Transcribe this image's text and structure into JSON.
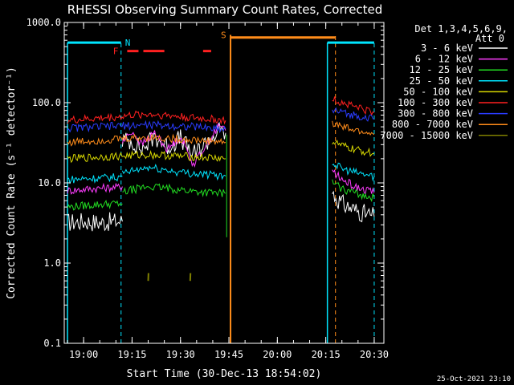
{
  "chart_data": {
    "type": "line",
    "title": "RHESSI Observing Summary Count Rates, Corrected",
    "xlabel": "Start Time (30-Dec-13 18:54:02)",
    "ylabel": "Corrected Count Rate (s⁻¹ detector⁻¹)",
    "y_scale": "log",
    "ylim": [
      0.1,
      1000
    ],
    "xlim_minutes": [
      18.9,
      20.55
    ],
    "x_tick_labels": [
      "19:00",
      "19:15",
      "19:30",
      "19:45",
      "20:00",
      "20:15",
      "20:30"
    ],
    "y_tick_labels": [
      "0.1",
      "1.0",
      "10.0",
      "100.0",
      "1000.0"
    ],
    "legend_header": [
      "Det 1,3,4,5,6,9,",
      "Att 0"
    ],
    "legend_position": "right",
    "timestamp": "25-Oct-2021 23:10",
    "flags": [
      {
        "label": "N",
        "color": "#00e5ff"
      },
      {
        "label": "F",
        "color": "#ff2020"
      },
      {
        "label": "S",
        "color": "#ff8c1a"
      }
    ],
    "series": [
      {
        "name": "3 - 6 keV",
        "color": "#ffffff",
        "segments": [
          {
            "x": [
              "18:55",
              "19:00",
              "19:05",
              "19:10",
              "19:12"
            ],
            "y": [
              3.2,
              3.3,
              3.2,
              3.3,
              3.3
            ]
          },
          {
            "x": [
              "19:12",
              "19:15",
              "19:18",
              "19:22",
              "19:26",
              "19:30",
              "19:34",
              "19:38",
              "19:42",
              "19:44"
            ],
            "y": [
              34,
              33,
              26,
              38,
              28,
              36,
              22,
              32,
              44,
              42
            ]
          },
          {
            "x": [
              "20:17",
              "20:20",
              "20:24",
              "20:28",
              "20:30"
            ],
            "y": [
              7.5,
              5.5,
              4.6,
              4.0,
              3.8
            ]
          }
        ]
      },
      {
        "name": "6 - 12 keV",
        "color": "#ff3cff",
        "segments": [
          {
            "x": [
              "18:55",
              "19:00",
              "19:05",
              "19:10",
              "19:12"
            ],
            "y": [
              8,
              8.3,
              8.6,
              8.8,
              9
            ]
          },
          {
            "x": [
              "19:12",
              "19:15",
              "19:18",
              "19:22",
              "19:26",
              "19:30",
              "19:34",
              "19:38",
              "19:42",
              "19:44"
            ],
            "y": [
              32,
              44,
              30,
              42,
              26,
              38,
              17,
              30,
              52,
              45
            ]
          },
          {
            "x": [
              "20:17",
              "20:20",
              "20:24",
              "20:28",
              "20:30"
            ],
            "y": [
              14,
              11,
              9,
              8,
              7.5
            ]
          }
        ]
      },
      {
        "name": "12 - 25 keV",
        "color": "#22dd22",
        "segments": [
          {
            "x": [
              "18:55",
              "19:00",
              "19:05",
              "19:10",
              "19:12"
            ],
            "y": [
              5,
              5.2,
              5.4,
              5.5,
              5.5
            ]
          },
          {
            "x": [
              "19:12",
              "19:15",
              "19:20",
              "19:25",
              "19:30",
              "19:35",
              "19:40",
              "19:44"
            ],
            "y": [
              7.5,
              8.2,
              9.0,
              8.6,
              8.2,
              7.8,
              7.5,
              7.4
            ]
          },
          {
            "x": [
              "20:17",
              "20:20",
              "20:24",
              "20:28",
              "20:30"
            ],
            "y": [
              10,
              8.5,
              7.5,
              6.8,
              6.5
            ]
          }
        ]
      },
      {
        "name": "25 - 50 keV",
        "color": "#00e5ff",
        "segments": [
          {
            "x": [
              "18:55",
              "19:00",
              "19:05",
              "19:10",
              "19:12"
            ],
            "y": [
              11,
              11.3,
              11.5,
              11.8,
              12
            ]
          },
          {
            "x": [
              "19:12",
              "19:15",
              "19:20",
              "19:25",
              "19:30",
              "19:35",
              "19:40",
              "19:44"
            ],
            "y": [
              13,
              14,
              15.5,
              14.5,
              13.5,
              13,
              12.5,
              12.2
            ]
          },
          {
            "x": [
              "20:17",
              "20:20",
              "20:24",
              "20:28",
              "20:30"
            ],
            "y": [
              18,
              15,
              13.5,
              12.5,
              12
            ]
          }
        ]
      },
      {
        "name": "50 - 100 keV",
        "color": "#d8d800",
        "segments": [
          {
            "x": [
              "18:55",
              "19:00",
              "19:05",
              "19:10",
              "19:15",
              "19:20",
              "19:25",
              "19:30",
              "19:35",
              "19:40",
              "19:44"
            ],
            "y": [
              20,
              20.5,
              21,
              21.5,
              22,
              22.5,
              22,
              21.5,
              21,
              20.5,
              20
            ]
          },
          {
            "x": [
              "20:17",
              "20:20",
              "20:24",
              "20:28",
              "20:30"
            ],
            "y": [
              33,
              29,
              26,
              24,
              23
            ]
          }
        ]
      },
      {
        "name": "100 - 300 keV",
        "color": "#ff2020",
        "segments": [
          {
            "x": [
              "18:55",
              "19:00",
              "19:05",
              "19:10",
              "19:15",
              "19:20",
              "19:25",
              "19:30",
              "19:35",
              "19:40",
              "19:44"
            ],
            "y": [
              60,
              62,
              64,
              66,
              70,
              72,
              70,
              67,
              64,
              62,
              60
            ]
          },
          {
            "x": [
              "20:17",
              "20:20",
              "20:24",
              "20:28",
              "20:30"
            ],
            "y": [
              110,
              100,
              90,
              80,
              75
            ]
          }
        ]
      },
      {
        "name": "300 - 800 keV",
        "color": "#2a3cff",
        "segments": [
          {
            "x": [
              "18:55",
              "19:00",
              "19:05",
              "19:10",
              "19:15",
              "19:20",
              "19:25",
              "19:30",
              "19:35",
              "19:40",
              "19:44"
            ],
            "y": [
              48,
              49,
              50,
              51,
              52,
              53,
              52,
              51,
              50,
              48,
              47
            ]
          },
          {
            "x": [
              "20:17",
              "20:20",
              "20:24",
              "20:28",
              "20:30"
            ],
            "y": [
              80,
              75,
              70,
              65,
              62
            ]
          }
        ]
      },
      {
        "name": "800 - 7000 keV",
        "color": "#ff8c1a",
        "segments": [
          {
            "x": [
              "18:55",
              "19:00",
              "19:05",
              "19:10",
              "19:15",
              "19:20",
              "19:25",
              "19:30",
              "19:35",
              "19:40",
              "19:44"
            ],
            "y": [
              32,
              33,
              34,
              35,
              36,
              37,
              36,
              35,
              34,
              33,
              32
            ]
          },
          {
            "x": [
              "20:17",
              "20:20",
              "20:24",
              "20:28",
              "20:30"
            ],
            "y": [
              55,
              50,
              45,
              42,
              40
            ]
          }
        ]
      },
      {
        "name": "7000 - 15000 keV",
        "color": "#808000",
        "segments": [
          {
            "x": [
              "19:20",
              "19:20.1"
            ],
            "y": [
              0.6,
              0.75
            ]
          },
          {
            "x": [
              "19:33",
              "19:33.1"
            ],
            "y": [
              0.6,
              0.75
            ]
          }
        ]
      }
    ]
  }
}
